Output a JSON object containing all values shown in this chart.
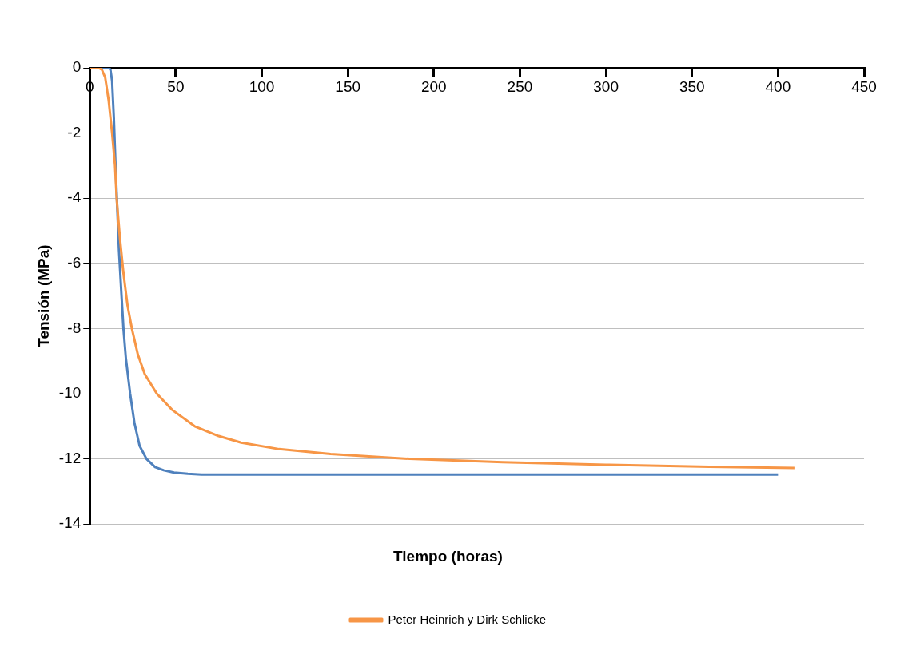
{
  "chart_data": {
    "type": "line",
    "xlabel": "Tiempo (horas)",
    "ylabel": "Tensión (MPa)",
    "xlim": [
      0,
      450
    ],
    "xticks": [
      0,
      50,
      100,
      150,
      200,
      250,
      300,
      350,
      400,
      450
    ],
    "ylim": [
      -14,
      0
    ],
    "yticks": [
      -14,
      -12,
      -10,
      -8,
      -6,
      -4,
      -2,
      0
    ],
    "grid": "y",
    "legend": "bottom",
    "marker": "none",
    "line_style": "solid",
    "series": [
      {
        "name": "Peter Heinrich y Dirk Schlicke",
        "color": "#f79646",
        "x": [
          0,
          5,
          7,
          9,
          11,
          13,
          14.7,
          15.7,
          17.5,
          19.6,
          22,
          24.5,
          28,
          32,
          39,
          48,
          61,
          75,
          88,
          110,
          140,
          186,
          240,
          300,
          360,
          410
        ],
        "values": [
          0,
          0,
          -0.05,
          -0.3,
          -1,
          -2,
          -3,
          -4.04,
          -5.2,
          -6.3,
          -7.3,
          -8,
          -8.8,
          -9.4,
          -10,
          -10.5,
          -11,
          -11.3,
          -11.5,
          -11.7,
          -11.85,
          -12,
          -12.1,
          -12.18,
          -12.24,
          -12.28
        ]
      },
      {
        "color": "#4f81bd",
        "x": [
          0,
          11,
          12,
          13,
          14,
          15,
          17,
          18.5,
          19.6,
          21,
          23.5,
          26,
          29,
          33,
          38,
          43,
          49,
          57,
          65,
          100,
          200,
          300,
          400
        ],
        "values": [
          0,
          0,
          -0.05,
          -0.4,
          -1.5,
          -3,
          -5.6,
          -7,
          -8,
          -8.9,
          -10,
          -10.9,
          -11.6,
          -12,
          -12.25,
          -12.35,
          -12.42,
          -12.46,
          -12.48,
          -12.48,
          -12.48,
          -12.48,
          -12.48
        ]
      }
    ]
  }
}
